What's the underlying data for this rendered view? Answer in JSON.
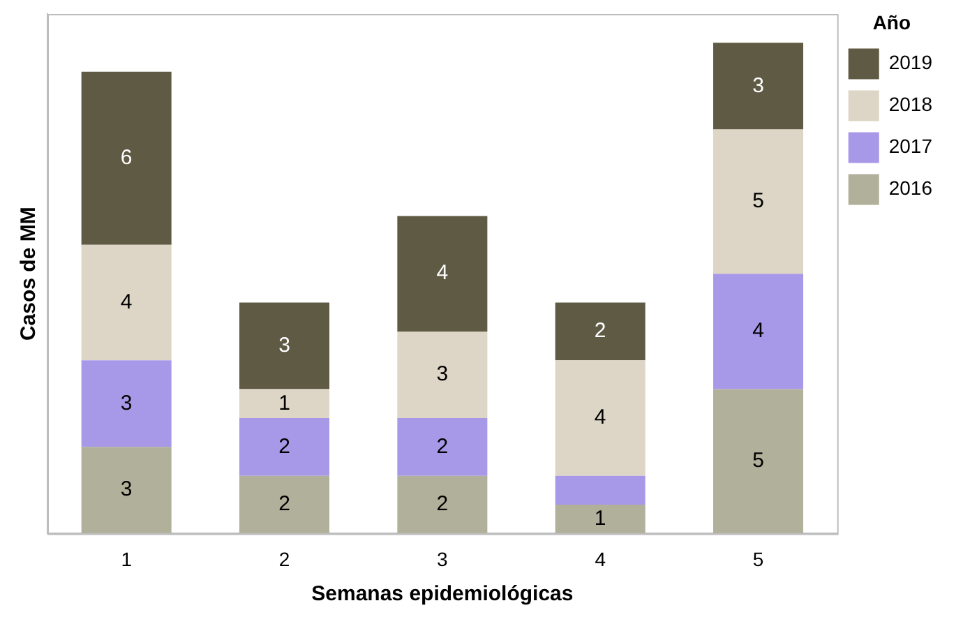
{
  "chart_data": {
    "type": "bar",
    "stacked": true,
    "xlabel": "Semanas epidemiológicas",
    "ylabel": "Casos de MM",
    "legend_title": "Año",
    "legend": "right",
    "grid": false,
    "categories": [
      "1",
      "2",
      "3",
      "4",
      "5"
    ],
    "tick_labels": "x",
    "series": [
      {
        "name": "2016",
        "color": "#b1b09a",
        "values": [
          3,
          2,
          2,
          1,
          5
        ],
        "value_labels": [
          "3",
          "2",
          "2",
          "1",
          "5"
        ]
      },
      {
        "name": "2017",
        "color": "#a898e8",
        "values": [
          3,
          2,
          2,
          1,
          4
        ],
        "value_labels": [
          "3",
          "2",
          "2",
          null,
          "4"
        ]
      },
      {
        "name": "2018",
        "color": "#ddd5c5",
        "values": [
          4,
          1,
          3,
          4,
          5
        ],
        "value_labels": [
          "4",
          "1",
          "3",
          "4",
          "5"
        ]
      },
      {
        "name": "2019",
        "color": "#5f5a44",
        "values": [
          6,
          3,
          4,
          2,
          3
        ],
        "value_labels": [
          "6",
          "3",
          "4",
          "2",
          "3"
        ]
      }
    ]
  }
}
